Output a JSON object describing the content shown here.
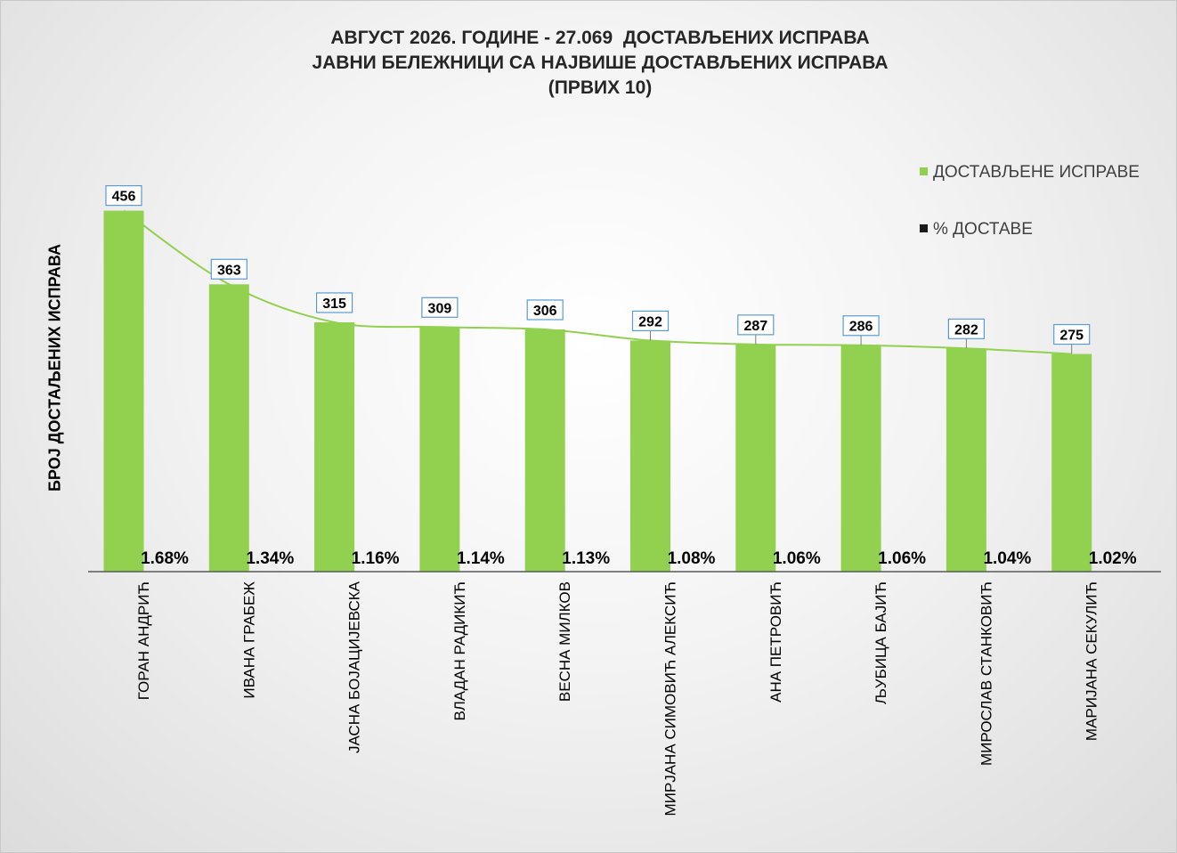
{
  "chart_data": {
    "type": "bar",
    "title": [
      "АВГУСТ 2026. ГОДИНЕ - 27.069  ДОСТАВЉЕНИХ ИСПРАВА",
      "ЈАВНИ БЕЛЕЖНИЦИ СА НАЈВИШЕ ДОСТАВЉЕНИХ ИСПРАВА",
      "(ПРВИХ 10)"
    ],
    "ylabel": "БРОЈ ДОСТАЉЕНИХ ИСПРАВА",
    "xlabel": "",
    "ylim": [
      0,
      500
    ],
    "grid": false,
    "legend_position": "top-right",
    "categories": [
      "ГОРАН АНДРИЋ",
      "ИВАНА ГРАБЕЖ",
      "ЈАСНА БОЈАЦИЈЕВСКА",
      "ВЛАДАН РАДИКИЋ",
      "ВЕСНА МИЛКОВ",
      "МИРЈАНА СИМОВИЋ АЛЕКСИЋ",
      "АНА ПЕТРОВИЋ",
      "ЉУБИЦА БАЈИЋ",
      "МИРОСЛАВ СТАНКОВИЋ",
      "МАРИЈАНА СЕКУЛИЋ"
    ],
    "series": [
      {
        "name": "ДОСТАВЉЕНЕ ИСПРАВЕ",
        "color": "#92d050",
        "values": [
          456,
          363,
          315,
          309,
          306,
          292,
          287,
          286,
          282,
          275
        ],
        "labels": [
          "456",
          "363",
          "315",
          "309",
          "306",
          "292",
          "287",
          "286",
          "282",
          "275"
        ]
      },
      {
        "name": "% ДОСТАВЕ",
        "color": "#1a1a1a",
        "values": [
          1.68,
          1.34,
          1.16,
          1.14,
          1.13,
          1.08,
          1.06,
          1.06,
          1.04,
          1.02
        ],
        "labels": [
          "1.68%",
          "1.34%",
          "1.16%",
          "1.14%",
          "1.13%",
          "1.08%",
          "1.06%",
          "1.06%",
          "1.04%",
          "1.02%"
        ]
      }
    ],
    "trendline": {
      "color": "#92d050",
      "smooth": true
    }
  }
}
